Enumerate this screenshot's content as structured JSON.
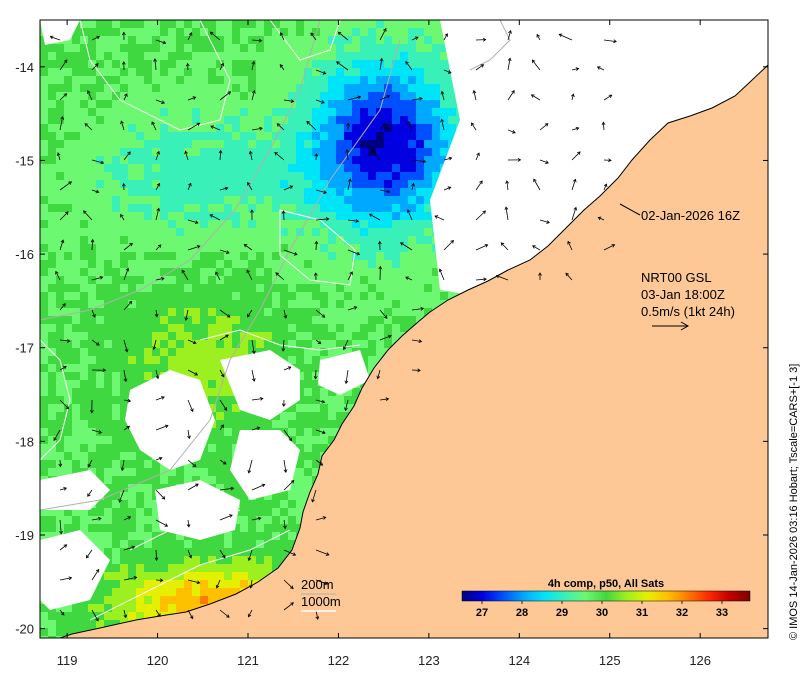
{
  "map": {
    "lon_range": [
      118.7,
      126.75
    ],
    "lat_range": [
      -20.1,
      -13.5
    ],
    "lon_ticks": [
      "119",
      "120",
      "121",
      "122",
      "123",
      "124",
      "125",
      "126"
    ],
    "lat_ticks": [
      "-14",
      "-15",
      "-16",
      "-17",
      "-18",
      "-19",
      "-20"
    ],
    "colors": {
      "land": "#fdc896",
      "coast": "#000000",
      "contour": "#ffffff",
      "bathy": "#b0b0b0",
      "frame": "#000000"
    }
  },
  "annotations": {
    "timestamp": "02-Jan-2026 16Z",
    "current_line1": "NRT00 GSL",
    "current_line2": "03-Jan 18:00Z",
    "current_line3": "0.5m/s (1kt 24h)",
    "depth_200": "200m",
    "depth_1000": "1000m"
  },
  "colorbar": {
    "title": "4h comp, p50, All Sats",
    "ticks": [
      "27",
      "28",
      "29",
      "30",
      "31",
      "32",
      "33"
    ],
    "range": [
      26.5,
      33.7
    ],
    "stops": [
      "#00007f",
      "#0000e0",
      "#0050ff",
      "#00a8ff",
      "#00e4f8",
      "#38f0b8",
      "#6cf870",
      "#40d840",
      "#9cf020",
      "#e4f000",
      "#ffc000",
      "#ff7800",
      "#ff2800",
      "#c00000",
      "#800000"
    ]
  },
  "credit": "© IMOS 14-Jan-2026 03:16 Hobart; Tscale=CARS+[-1 3]"
}
